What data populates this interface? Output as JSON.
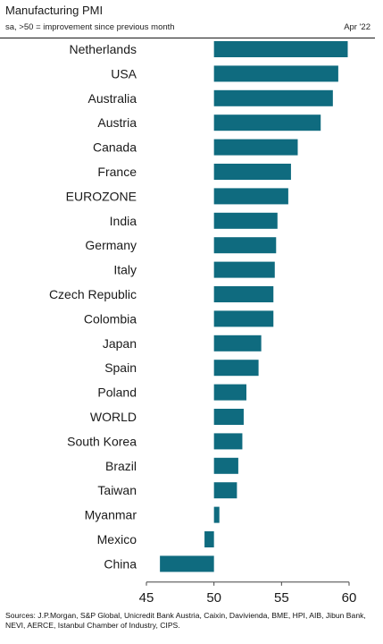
{
  "header": {
    "title": "Manufacturing PMI",
    "subtitle": "sa, >50 = improvement since previous month",
    "period": "Apr '22"
  },
  "chart_data": {
    "type": "bar",
    "orientation": "horizontal",
    "title": "Manufacturing PMI",
    "subtitle": "sa, >50 = improvement since previous month",
    "xlabel": "",
    "ylabel": "",
    "baseline": 50,
    "xlim": [
      45,
      60
    ],
    "xticks": [
      45,
      50,
      55,
      60
    ],
    "grid": false,
    "categories": [
      "Netherlands",
      "USA",
      "Australia",
      "Austria",
      "Canada",
      "France",
      "EUROZONE",
      "India",
      "Germany",
      "Italy",
      "Czech Republic",
      "Colombia",
      "Japan",
      "Spain",
      "Poland",
      "WORLD",
      "South Korea",
      "Brazil",
      "Taiwan",
      "Myanmar",
      "Mexico",
      "China"
    ],
    "values": [
      59.9,
      59.2,
      58.8,
      57.9,
      56.2,
      55.7,
      55.5,
      54.7,
      54.6,
      54.5,
      54.4,
      54.4,
      53.5,
      53.3,
      52.4,
      52.2,
      52.1,
      51.8,
      51.7,
      50.4,
      49.3,
      46.0
    ]
  },
  "colors": {
    "bar": "#0f6b7f",
    "axis": "#444444"
  },
  "footer": {
    "source": "Sources: J.P.Morgan, S&P Global, Unicredit Bank Austria, Caixin, Davivienda, BME, HPI, AIB, Jibun Bank, NEVI, AERCE, Istanbul Chamber of Industry, CIPS."
  }
}
